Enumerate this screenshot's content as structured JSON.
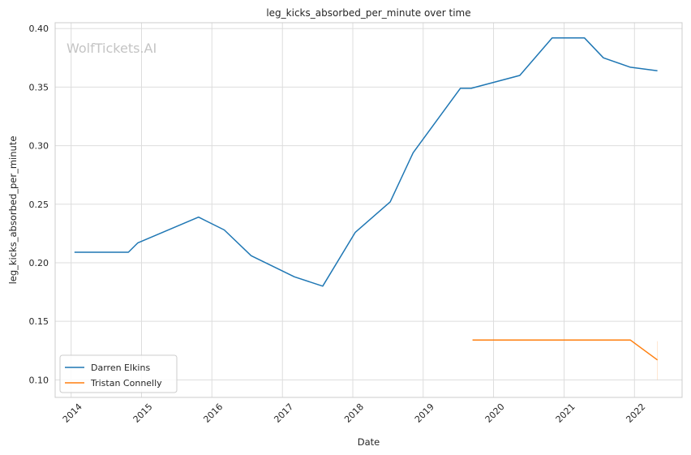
{
  "chart_data": {
    "type": "line",
    "title": "leg_kicks_absorbed_per_minute over time",
    "xlabel": "Date",
    "ylabel": "leg_kicks_absorbed_per_minute",
    "watermark": "WolfTickets.AI",
    "xlim": [
      "2013-10-10",
      "2022-09-05"
    ],
    "ylim": [
      0.085,
      0.405
    ],
    "x_ticks": [
      "2014",
      "2015",
      "2016",
      "2017",
      "2018",
      "2019",
      "2020",
      "2021",
      "2022"
    ],
    "y_ticks": [
      "0.10",
      "0.15",
      "0.20",
      "0.25",
      "0.30",
      "0.35",
      "0.40"
    ],
    "grid": true,
    "legend_position": "lower-left",
    "series": [
      {
        "name": "Darren Elkins",
        "color": "#1f77b4",
        "points": [
          {
            "x": "2014-01-18",
            "y": 0.209
          },
          {
            "x": "2014-10-25",
            "y": 0.209
          },
          {
            "x": "2014-12-13",
            "y": 0.217
          },
          {
            "x": "2015-10-24",
            "y": 0.239
          },
          {
            "x": "2016-03-05",
            "y": 0.228
          },
          {
            "x": "2016-07-23",
            "y": 0.206
          },
          {
            "x": "2017-03-04",
            "y": 0.188
          },
          {
            "x": "2017-07-29",
            "y": 0.18
          },
          {
            "x": "2018-01-14",
            "y": 0.226
          },
          {
            "x": "2018-07-14",
            "y": 0.252
          },
          {
            "x": "2018-11-10",
            "y": 0.294
          },
          {
            "x": "2019-07-13",
            "y": 0.349
          },
          {
            "x": "2019-09-07",
            "y": 0.349
          },
          {
            "x": "2020-05-16",
            "y": 0.36
          },
          {
            "x": "2020-10-31",
            "y": 0.392
          },
          {
            "x": "2021-04-17",
            "y": 0.392
          },
          {
            "x": "2021-07-24",
            "y": 0.375
          },
          {
            "x": "2021-12-11",
            "y": 0.367
          },
          {
            "x": "2022-04-30",
            "y": 0.364
          }
        ]
      },
      {
        "name": "Tristan Connelly",
        "color": "#ff7f0e",
        "points": [
          {
            "x": "2019-09-14",
            "y": 0.134
          },
          {
            "x": "2021-12-11",
            "y": 0.134
          },
          {
            "x": "2022-04-30",
            "y": 0.117
          }
        ]
      }
    ]
  }
}
